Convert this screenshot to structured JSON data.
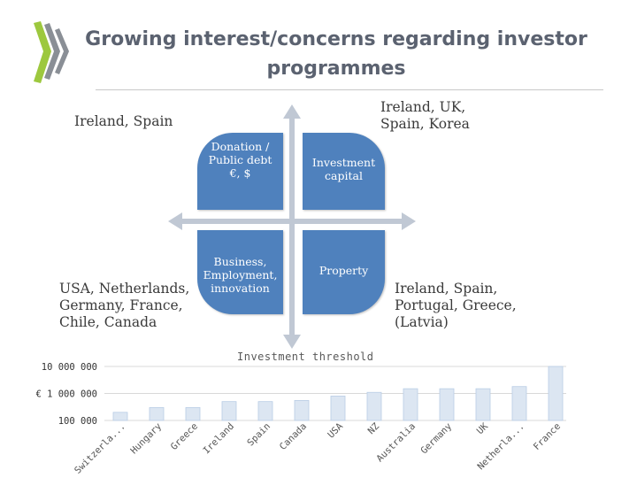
{
  "header": {
    "title": "Growing interest/concerns regarding investor programmes"
  },
  "quadrant_labels": {
    "top_left": "Ireland, Spain",
    "top_right": "Ireland, UK, Spain, Korea",
    "bottom_left": "USA, Netherlands, Germany, France, Chile, Canada",
    "bottom_right": "Ireland, Spain, Portugal, Greece, (Latvia)"
  },
  "quadrants": {
    "top_left": "Donation /\nPublic debt\n€, $",
    "top_right": "Investment\ncapital",
    "bottom_left": "Business,\nEmployment,\ninnovation",
    "bottom_right": "Property"
  },
  "colors": {
    "box": "#4f81bd",
    "bar_fill": "#dce6f2",
    "bar_stroke": "#b9cde5",
    "logo_green": "#9dc83e",
    "logo_gray": "#8a8f96"
  },
  "chart_data": {
    "type": "bar",
    "title": "Investment threshold",
    "ylabel": "€",
    "yscale": "log",
    "yticks": [
      100000,
      1000000,
      10000000
    ],
    "ytick_labels": [
      "100 000",
      "€ 1 000 000",
      "10 000 000"
    ],
    "categories": [
      "Switzerla...",
      "Hungary",
      "Greece",
      "Ireland",
      "Spain",
      "Canada",
      "USA",
      "NZ",
      "Australia",
      "Germany",
      "UK",
      "Netherla...",
      "France"
    ],
    "values": [
      200000,
      300000,
      300000,
      500000,
      500000,
      550000,
      800000,
      1100000,
      1500000,
      1500000,
      1500000,
      1800000,
      10000000
    ]
  }
}
